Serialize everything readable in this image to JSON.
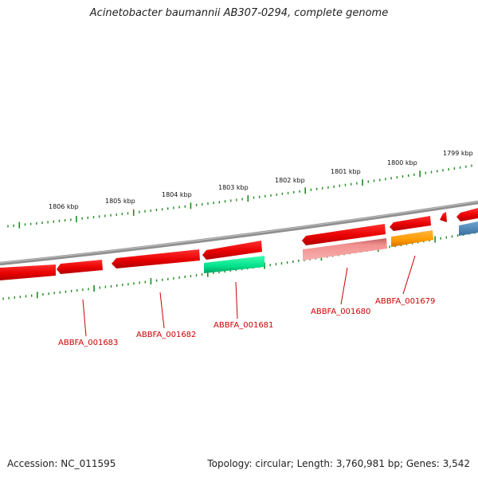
{
  "title": "Acinetobacter baumannii AB307-0294, complete genome",
  "footer": {
    "accession": "Accession: NC_011595",
    "summary": "Topology: circular; Length: 3,760,981 bp; Genes: 3,542"
  },
  "colors": {
    "backbone": "#8a8a8a",
    "tick": "#1f8a1f",
    "gene_forward": "#ff0000",
    "gene_reverse": "#ff0000",
    "gene_pink": "#f08a8a",
    "gene_green": "#00e38c",
    "gene_orange": "#ff9900",
    "gene_blue": "#4a86b8",
    "label": "#cc0000"
  },
  "kbp_labels": [
    "1806 kbp",
    "1805 kbp",
    "1804 kbp",
    "1803 kbp",
    "1802 kbp",
    "1801 kbp",
    "1800 kbp",
    "1799 kbp"
  ],
  "gene_labels": [
    "ABBFA_001683",
    "ABBFA_001682",
    "ABBFA_001681",
    "ABBFA_001680",
    "ABBFA_001679"
  ]
}
